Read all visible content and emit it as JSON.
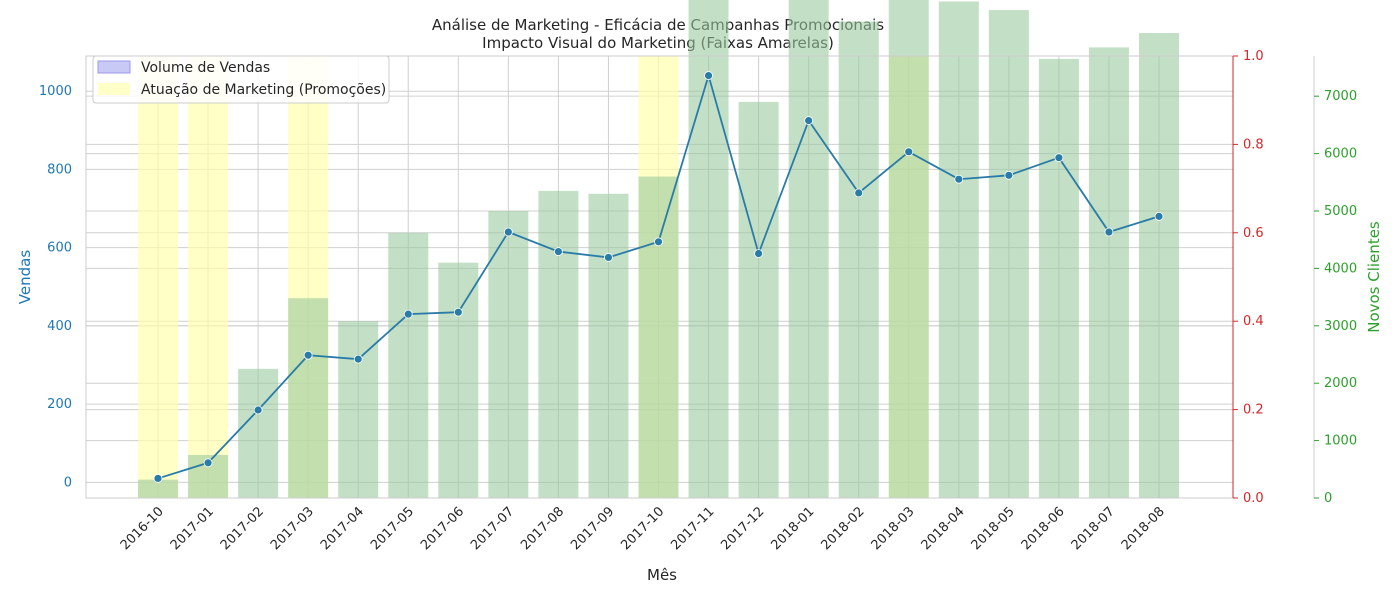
{
  "chart_data": {
    "type": "bar+line",
    "title": "Análise de Marketing - Eficácia de Campanhas Promocionais",
    "subtitle": "Impacto Visual do Marketing (Faixas Amarelas)",
    "xlabel": "Mês",
    "ylabel_left": "Vendas",
    "ylabel_right": "Novos Clientes",
    "categories": [
      "2016-10",
      "2017-01",
      "2017-02",
      "2017-03",
      "2017-04",
      "2017-05",
      "2017-06",
      "2017-07",
      "2017-08",
      "2017-09",
      "2017-10",
      "2017-11",
      "2017-12",
      "2018-01",
      "2018-02",
      "2018-03",
      "2018-04",
      "2018-05",
      "2018-06",
      "2018-07",
      "2018-08"
    ],
    "sales_line": {
      "values": [
        10,
        50,
        185,
        325,
        315,
        430,
        435,
        640,
        590,
        575,
        615,
        1040,
        585,
        925,
        740,
        845,
        775,
        785,
        830,
        640,
        680
      ],
      "color": "#2a7ca8"
    },
    "new_clients_bars": {
      "values": [
        320,
        750,
        2250,
        3480,
        3080,
        4620,
        4100,
        5000,
        5350,
        5300,
        5600,
        9450,
        6900,
        9050,
        8300,
        9000,
        8650,
        8500,
        7650,
        7850,
        8100
      ],
      "color": "#98c89c"
    },
    "marketing_months": [
      "2016-10",
      "2017-01",
      "2017-03",
      "2017-10",
      "2018-03"
    ],
    "marketing_color": "#ffffa8",
    "left_axis": {
      "ylim": [
        -40,
        1090
      ],
      "ticks": [
        0,
        200,
        400,
        600,
        800,
        1000
      ],
      "color": "#1f77b4"
    },
    "middle_axis": {
      "ylim": [
        0,
        1
      ],
      "ticks": [
        "0.0",
        "0.2",
        "0.4",
        "0.6",
        "0.8",
        "1.0"
      ],
      "color": "#d62728"
    },
    "right_axis": {
      "ylim": [
        0,
        7700
      ],
      "ticks": [
        0,
        1000,
        2000,
        3000,
        4000,
        5000,
        6000,
        7000
      ],
      "color": "#2ca02c"
    },
    "legend": {
      "placement": "top-left",
      "items": [
        {
          "label": "Volume de Vendas",
          "color": "#c9c9f5"
        },
        {
          "label": "Atuação de Marketing (Promoções)",
          "color": "#ffffc8"
        }
      ]
    },
    "grid": true
  }
}
